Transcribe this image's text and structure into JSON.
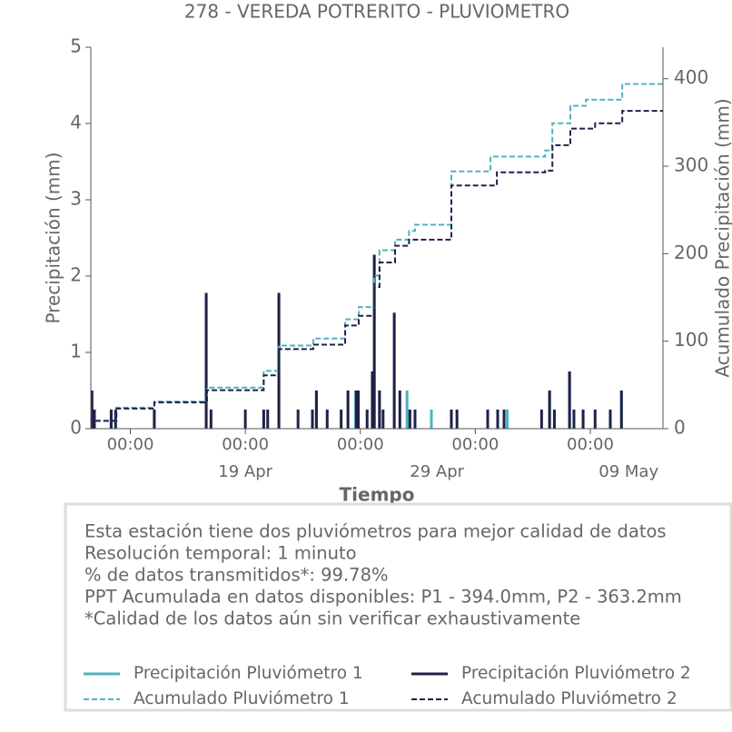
{
  "chart_data": {
    "type": "bar-line",
    "title": "278 - VEREDA POTRERITO - PLUVIOMETRO",
    "xlabel": "Tiempo",
    "ylabel": "Precipitación (mm)",
    "y2label": "Acumulado Precipitación (mm)",
    "xlim": [
      "Apr 10 22:30",
      "May 10 19:00"
    ],
    "ylim": [
      0,
      5
    ],
    "yticks": [
      0,
      1,
      2,
      3,
      4,
      5
    ],
    "y2lim": [
      0,
      436
    ],
    "y2ticks": [
      0,
      100,
      200,
      300,
      400
    ],
    "xticks": [
      {
        "value": "Apr 13 00:00",
        "label": "00:00"
      },
      {
        "value": "Apr 19 00:00",
        "label": "00:00"
      },
      {
        "value": "Apr 25 00:00",
        "label": "00:00"
      },
      {
        "value": "May 1 00:00",
        "label": "00:00"
      },
      {
        "value": "May 7 00:00",
        "label": "00:00"
      }
    ],
    "xdate_labels": [
      {
        "value": "Apr 19 00:00",
        "label": "19 Apr"
      },
      {
        "value": "Apr 29 00:00",
        "label": "29 Apr"
      },
      {
        "value": "May 9 00:00",
        "label": "09 May"
      }
    ],
    "series": [
      {
        "name": "Precipitación Pluviómetro 1",
        "color": "#4fb3bf",
        "style": "bar",
        "x": [
          "Apr 11 00:00",
          "Apr 12 00:00",
          "Apr 14 06:00",
          "Apr 16 23:00",
          "Apr 19 23:00",
          "Apr 20 18:00",
          "Apr 22 17:00",
          "Apr 24 08:30",
          "Apr 24 18:00",
          "Apr 25 17:30",
          "Apr 26 00:00",
          "Apr 26 18:30",
          "Apr 27 14:00",
          "Apr 27 10:30",
          "Apr 28 17:00",
          "Apr 29 18:00",
          "May 1 15:30",
          "May 2 12:00",
          "May 2 16:00",
          "May 4 21:00",
          "May 5 22:00",
          "May 6 15:00",
          "May 8 15:00"
        ],
        "values": [
          0.25,
          0.25,
          0.25,
          1.75,
          0.25,
          1.75,
          0.5,
          0.5,
          0.5,
          2.25,
          0.5,
          1.5,
          0.25,
          0.5,
          0.25,
          0.25,
          0.25,
          0.25,
          0.25,
          0.5,
          0.75,
          0.25,
          0.5
        ]
      },
      {
        "name": "Precipitación Pluviómetro 2",
        "color": "#1f2148",
        "style": "bar",
        "x": [
          "Apr 11 00:00",
          "Apr 11 03:00",
          "Apr 12 00:00",
          "Apr 12 05:30",
          "Apr 14 06:00",
          "Apr 16 23:00",
          "Apr 17 05:00",
          "Apr 19 00:00",
          "Apr 19 23:00",
          "Apr 20 04:00",
          "Apr 20 18:00",
          "Apr 21 18:00",
          "Apr 22 12:00",
          "Apr 22 17:00",
          "Apr 23 06:30",
          "Apr 24 00:00",
          "Apr 24 08:30",
          "Apr 24 19:00",
          "Apr 24 21:30",
          "Apr 25 08:30",
          "Apr 25 15:00",
          "Apr 25 17:30",
          "Apr 26 00:00",
          "Apr 26 04:30",
          "Apr 26 18:30",
          "Apr 27 01:30",
          "Apr 27 14:00",
          "Apr 27 20:30",
          "Apr 29 18:00",
          "Apr 30 01:00",
          "May 1 15:30",
          "May 2 04:00",
          "May 2 12:00",
          "May 4 11:00",
          "May 4 21:00",
          "May 5 03:00",
          "May 5 22:00",
          "May 6 03:30",
          "May 6 15:00",
          "May 7 06:00",
          "May 8 01:00",
          "May 8 15:00"
        ],
        "values": [
          0.5,
          0.25,
          0.25,
          0.25,
          0.25,
          1.78,
          0.25,
          0.25,
          0.25,
          0.25,
          1.78,
          0.25,
          0.25,
          0.5,
          0.25,
          0.25,
          0.5,
          0.5,
          0.5,
          0.25,
          0.75,
          2.28,
          0.5,
          0.25,
          1.52,
          0.5,
          0.25,
          0.25,
          0.25,
          0.25,
          0.25,
          0.25,
          0.25,
          0.25,
          0.5,
          0.25,
          0.75,
          0.25,
          0.25,
          0.25,
          0.25,
          0.5
        ]
      },
      {
        "name": "Acumulado Pluviómetro 1",
        "color": "#4fb3bf",
        "style": "step",
        "axis": "y2",
        "x": [
          "Apr 11 04:00",
          "Apr 12 06:30",
          "Apr 14 06:00",
          "Apr 17 00:00",
          "Apr 19 23:00",
          "Apr 20 18:00",
          "Apr 22 13:00",
          "Apr 24 05:00",
          "Apr 24 22:00",
          "Apr 25 17:30",
          "Apr 26 00:00",
          "Apr 26 19:30",
          "Apr 27 13:00",
          "Apr 27 20:30",
          "Apr 29 18:00",
          "May 1 19:00",
          "May 4 15:30",
          "May 5 00:30",
          "May 5 23:00",
          "May 6 18:30",
          "May 8 16:00",
          "May 10 19:00"
        ],
        "values": [
          9,
          24,
          31,
          47,
          66,
          95,
          103,
          125,
          139,
          175,
          204,
          216,
          226,
          233,
          294,
          311,
          318,
          349,
          369,
          376,
          394,
          394
        ]
      },
      {
        "name": "Acumulado Pluviómetro 2",
        "color": "#1f2148",
        "style": "step",
        "axis": "y2",
        "x": [
          "Apr 11 04:00",
          "Apr 12 06:30",
          "Apr 14 06:00",
          "Apr 17 00:00",
          "Apr 19 23:00",
          "Apr 20 18:00",
          "Apr 22 13:00",
          "Apr 24 05:00",
          "Apr 24 22:00",
          "Apr 25 17:30",
          "Apr 26 00:00",
          "Apr 26 19:30",
          "Apr 27 13:00",
          "Apr 29 18:00",
          "May 2 03:00",
          "May 4 15:30",
          "May 5 00:30",
          "May 5 23:00",
          "May 7 06:00",
          "May 8 16:00",
          "May 10 19:00"
        ],
        "values": [
          9,
          23,
          30,
          44,
          61,
          91,
          96,
          118,
          129,
          162,
          190,
          209,
          216,
          278,
          293,
          295,
          324,
          343,
          349,
          363.2,
          363.2
        ]
      }
    ],
    "notes": [
      "Esta estación tiene dos pluviómetros para mejor calidad de datos",
      "Resolución temporal: 1 minuto",
      "% de datos transmitidos*: 99.78%",
      "PPT Acumulada en datos disponibles: P1 - 394.0mm, P2 - 363.2mm",
      "*Calidad de los datos aún sin verificar exhaustivamente"
    ]
  }
}
